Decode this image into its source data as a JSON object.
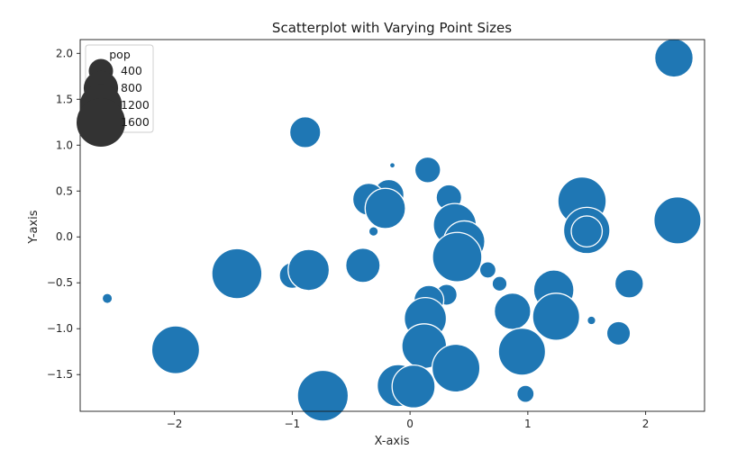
{
  "chart_data": {
    "type": "scatter",
    "title": "Scatterplot with Varying Point Sizes",
    "xlabel": "X-axis",
    "ylabel": "Y-axis",
    "xlim": [
      -2.8,
      2.5
    ],
    "ylim": [
      -1.9,
      2.15
    ],
    "xticks": [
      -2,
      -1,
      0,
      1,
      2
    ],
    "xtick_labels": [
      "−2",
      "−1",
      "0",
      "1",
      "2"
    ],
    "yticks": [
      -1.5,
      -1.0,
      -0.5,
      0.0,
      0.5,
      1.0,
      1.5,
      2.0
    ],
    "ytick_labels": [
      "−1.5",
      "−1.0",
      "−0.5",
      "0.0",
      "0.5",
      "1.0",
      "1.5",
      "2.0"
    ],
    "grid": false,
    "color": "#1f77b4",
    "legend": {
      "title": "pop",
      "location": "upper-left",
      "color": "#333333",
      "entries": [
        {
          "label": "400",
          "size": 400
        },
        {
          "label": "800",
          "size": 800
        },
        {
          "label": "1200",
          "size": 1200
        },
        {
          "label": "1600",
          "size": 1600
        }
      ]
    },
    "size_variable": "pop",
    "points": [
      {
        "x": 2.24,
        "y": 1.95,
        "size": 1000
      },
      {
        "x": -0.89,
        "y": 1.14,
        "size": 650
      },
      {
        "x": -0.15,
        "y": 0.78,
        "size": 20
      },
      {
        "x": 0.15,
        "y": 0.73,
        "size": 450
      },
      {
        "x": -0.18,
        "y": 0.46,
        "size": 620
      },
      {
        "x": -0.35,
        "y": 0.41,
        "size": 700
      },
      {
        "x": -0.21,
        "y": 0.31,
        "size": 1100
      },
      {
        "x": 0.33,
        "y": 0.43,
        "size": 440
      },
      {
        "x": 1.46,
        "y": 0.39,
        "size": 1580
      },
      {
        "x": 2.27,
        "y": 0.18,
        "size": 1500
      },
      {
        "x": 0.38,
        "y": 0.13,
        "size": 1250
      },
      {
        "x": 1.5,
        "y": 0.07,
        "size": 1450
      },
      {
        "x": 1.5,
        "y": 0.06,
        "size": 650
      },
      {
        "x": -0.31,
        "y": 0.06,
        "size": 60
      },
      {
        "x": 0.46,
        "y": -0.05,
        "size": 1150
      },
      {
        "x": 0.4,
        "y": -0.22,
        "size": 1650
      },
      {
        "x": -0.4,
        "y": -0.31,
        "size": 800
      },
      {
        "x": -1.47,
        "y": -0.4,
        "size": 1700
      },
      {
        "x": -1.0,
        "y": -0.42,
        "size": 450
      },
      {
        "x": -0.86,
        "y": -0.36,
        "size": 1150
      },
      {
        "x": 0.66,
        "y": -0.36,
        "size": 180
      },
      {
        "x": 0.76,
        "y": -0.51,
        "size": 150
      },
      {
        "x": 1.86,
        "y": -0.51,
        "size": 550
      },
      {
        "x": 1.22,
        "y": -0.58,
        "size": 1100
      },
      {
        "x": -2.57,
        "y": -0.67,
        "size": 70
      },
      {
        "x": 0.31,
        "y": -0.63,
        "size": 300
      },
      {
        "x": 0.16,
        "y": -0.69,
        "size": 600
      },
      {
        "x": 0.87,
        "y": -0.81,
        "size": 900
      },
      {
        "x": 1.24,
        "y": -0.87,
        "size": 1500
      },
      {
        "x": 0.13,
        "y": -0.89,
        "size": 1200
      },
      {
        "x": 1.54,
        "y": -0.91,
        "size": 50
      },
      {
        "x": 1.77,
        "y": -1.05,
        "size": 380
      },
      {
        "x": 0.12,
        "y": -1.19,
        "size": 1350
      },
      {
        "x": -1.99,
        "y": -1.23,
        "size": 1550
      },
      {
        "x": 0.95,
        "y": -1.25,
        "size": 1500
      },
      {
        "x": 0.39,
        "y": -1.43,
        "size": 1550
      },
      {
        "x": -0.1,
        "y": -1.62,
        "size": 1200
      },
      {
        "x": 0.03,
        "y": -1.63,
        "size": 1250
      },
      {
        "x": 0.98,
        "y": -1.71,
        "size": 200
      },
      {
        "x": -0.74,
        "y": -1.73,
        "size": 1750
      }
    ]
  }
}
